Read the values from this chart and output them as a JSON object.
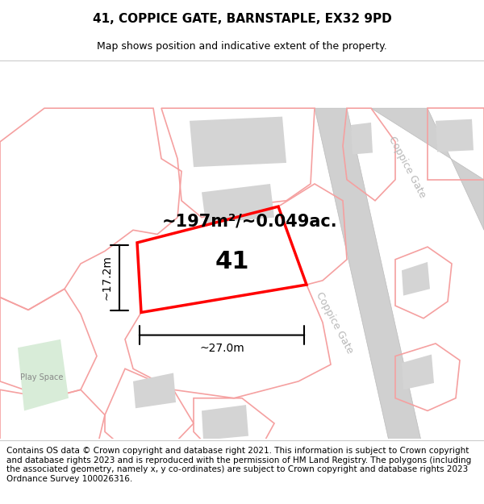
{
  "title": "41, COPPICE GATE, BARNSTAPLE, EX32 9PD",
  "subtitle": "Map shows position and indicative extent of the property.",
  "area_text": "~197m²/~0.049ac.",
  "label_41": "41",
  "dim_width": "~27.0m",
  "dim_height": "~17.2m",
  "street_label_lower": "Coppice Gate",
  "street_label_upper": "Coppice Gate",
  "play_space_label": "Play Space",
  "footer_text": "Contains OS data © Crown copyright and database right 2021. This information is subject to Crown copyright and database rights 2023 and is reproduced with the permission of HM Land Registry. The polygons (including the associated geometry, namely x, y co-ordinates) are subject to Crown copyright and database rights 2023 Ordnance Survey 100026316.",
  "highlight_color": "#ff0000",
  "plot_edge_color": "#f5a0a0",
  "building_color": "#d4d4d4",
  "road_color": "#d0d0d0",
  "road_edge_color": "#bbbbbb",
  "green_color": "#d8ecd8",
  "street_text_color": "#b8b8b8",
  "title_fontsize": 11,
  "subtitle_fontsize": 9,
  "area_fontsize": 15,
  "label_fontsize": 22,
  "dim_fontsize": 10,
  "footer_fontsize": 7.5
}
